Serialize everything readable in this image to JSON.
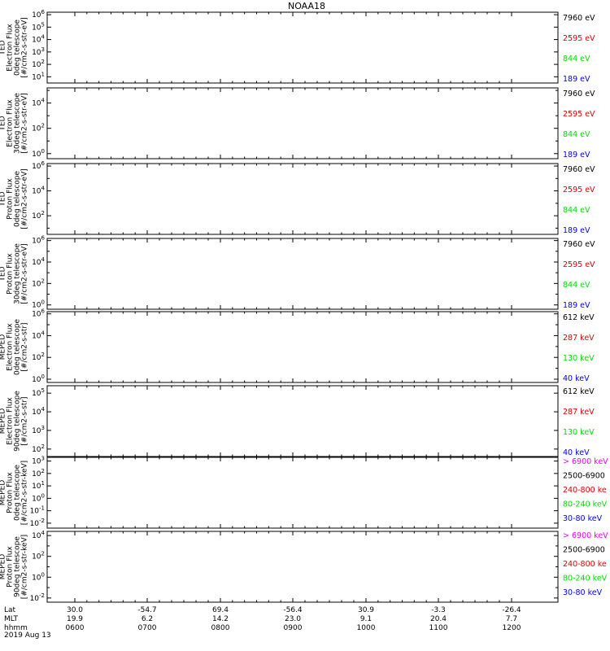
{
  "title": "NOAA18",
  "colors": {
    "black": "#000000",
    "red": "#dd0000",
    "green": "#00dd00",
    "blue": "#0000ee",
    "magenta": "#ee00ee"
  },
  "x_axis": {
    "rows": [
      {
        "label": "Lat",
        "values": [
          "30.0",
          "-54.7",
          "69.4",
          "-56.4",
          "30.9",
          "-3.3",
          "-26.4"
        ]
      },
      {
        "label": "MLT",
        "values": [
          "19.9",
          "6.2",
          "14.2",
          "23.0",
          "9.1",
          "20.4",
          "7.7"
        ]
      },
      {
        "label": "hhmm",
        "values": [
          "0600",
          "0700",
          "0800",
          "0900",
          "1000",
          "1100",
          "1200"
        ]
      }
    ],
    "date": "2019 Aug 13"
  },
  "chart_data": [
    {
      "type": "line",
      "ylabel": [
        "TED",
        "Electron Flux",
        "0deg telescope",
        "[#/cm2-s-str-eV]"
      ],
      "y_ticks": [
        1,
        2,
        3,
        4,
        5,
        6
      ],
      "y_minor_ticks": [],
      "ylim_exp": [
        0.5,
        6.2
      ],
      "log": true,
      "legend": [
        {
          "label": "7960 eV",
          "color": "black"
        },
        {
          "label": "2595 eV",
          "color": "red"
        },
        {
          "label": "844 eV",
          "color": "green"
        },
        {
          "label": "189 eV",
          "color": "blue"
        }
      ]
    },
    {
      "type": "line",
      "ylabel": [
        "TED",
        "Electron Flux",
        "30deg telescope",
        "[#/cm2-s-str-eV]"
      ],
      "y_ticks": [
        0,
        2,
        4
      ],
      "y_minor_ticks": [
        1,
        3,
        5
      ],
      "ylim_exp": [
        -0.4,
        5.2
      ],
      "log": true,
      "legend": [
        {
          "label": "7960 eV",
          "color": "black"
        },
        {
          "label": "2595 eV",
          "color": "red"
        },
        {
          "label": "844 eV",
          "color": "green"
        },
        {
          "label": "189 eV",
          "color": "blue"
        }
      ]
    },
    {
      "type": "line",
      "ylabel": [
        "TED",
        "Proton Flux",
        "0deg telescope",
        "[#/cm2-s-str-eV]"
      ],
      "y_ticks": [
        2,
        4,
        6
      ],
      "y_minor_ticks": [
        1,
        3,
        5
      ],
      "ylim_exp": [
        0.5,
        6.2
      ],
      "log": true,
      "legend": [
        {
          "label": "7960 eV",
          "color": "black"
        },
        {
          "label": "2595 eV",
          "color": "red"
        },
        {
          "label": "844 eV",
          "color": "green"
        },
        {
          "label": "189 eV",
          "color": "blue"
        }
      ]
    },
    {
      "type": "line",
      "ylabel": [
        "TED",
        "Proton Flux",
        "30deg telescope",
        "[#/cm2-s-str-eV]"
      ],
      "y_ticks": [
        0,
        2,
        4,
        6
      ],
      "y_minor_ticks": [
        1,
        3,
        5
      ],
      "ylim_exp": [
        -0.4,
        6.2
      ],
      "log": true,
      "legend": [
        {
          "label": "7960 eV",
          "color": "black"
        },
        {
          "label": "2595 eV",
          "color": "red"
        },
        {
          "label": "844 eV",
          "color": "green"
        },
        {
          "label": "189 eV",
          "color": "blue"
        }
      ]
    },
    {
      "type": "line",
      "ylabel": [
        "MEPED",
        "Electron Flux",
        "0deg telescope",
        "[#/cm2-s-str]"
      ],
      "y_ticks": [
        0,
        2,
        4,
        6
      ],
      "y_minor_ticks": [
        1,
        3,
        5
      ],
      "ylim_exp": [
        -0.3,
        6.2
      ],
      "log": true,
      "legend": [
        {
          "label": "612 keV",
          "color": "black"
        },
        {
          "label": "287 keV",
          "color": "red"
        },
        {
          "label": "130 keV",
          "color": "green"
        },
        {
          "label": "40 keV",
          "color": "blue"
        }
      ]
    },
    {
      "type": "line",
      "ylabel": [
        "MEPED",
        "Electron Flux",
        "90deg telescope",
        "[#/cm2-s-str]"
      ],
      "y_ticks": [
        2,
        3,
        4,
        5
      ],
      "y_minor_ticks": [],
      "ylim_exp": [
        1.6,
        5.4
      ],
      "log": true,
      "legend": [
        {
          "label": "612 keV",
          "color": "black"
        },
        {
          "label": "287 keV",
          "color": "red"
        },
        {
          "label": "130 keV",
          "color": "green"
        },
        {
          "label": "40 keV",
          "color": "blue"
        }
      ]
    },
    {
      "type": "line",
      "ylabel": [
        "MEPED",
        "Proton Flux",
        "0deg telescope",
        "[#/cm2-s-str-keV]"
      ],
      "y_ticks": [
        -2,
        -1,
        0,
        1,
        2,
        3
      ],
      "y_minor_ticks": [],
      "ylim_exp": [
        -2.4,
        3.3
      ],
      "log": true,
      "legend": [
        {
          "label": "> 6900 keV",
          "color": "magenta"
        },
        {
          "label": "2500-6900",
          "color": "black"
        },
        {
          "label": "240-800 ke",
          "color": "red"
        },
        {
          "label": "80-240 keV",
          "color": "green"
        },
        {
          "label": "30-80 keV",
          "color": "blue"
        }
      ]
    },
    {
      "type": "line",
      "ylabel": [
        "MEPED",
        "Proton Flux",
        "90deg telescope",
        "[#/cm2-s-str-keV]"
      ],
      "y_ticks": [
        -2,
        0,
        2,
        4
      ],
      "y_minor_ticks": [
        -1,
        1,
        3
      ],
      "ylim_exp": [
        -2.4,
        4.4
      ],
      "log": true,
      "legend": [
        {
          "label": "> 6900 keV",
          "color": "magenta"
        },
        {
          "label": "2500-6900",
          "color": "black"
        },
        {
          "label": "240-800 ke",
          "color": "red"
        },
        {
          "label": "80-240 keV",
          "color": "green"
        },
        {
          "label": "30-80 keV",
          "color": "blue"
        }
      ]
    }
  ]
}
